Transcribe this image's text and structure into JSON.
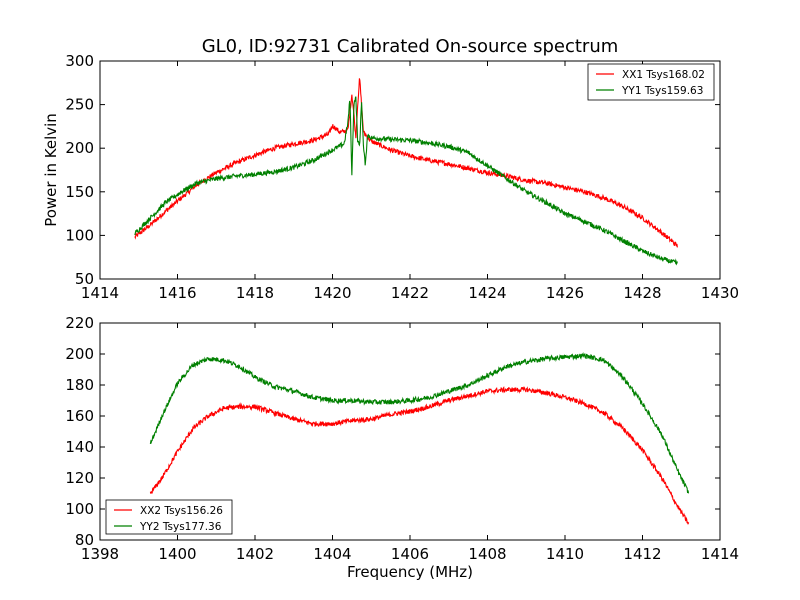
{
  "chart_data": [
    {
      "type": "line",
      "title": "GL0, ID:92731 Calibrated On-source spectrum",
      "xlabel": "",
      "ylabel": "Power in Kelvin",
      "xlim": [
        1414,
        1430
      ],
      "ylim": [
        50,
        300
      ],
      "xticks": [
        "1414",
        "1416",
        "1418",
        "1420",
        "1422",
        "1424",
        "1426",
        "1428",
        "1430"
      ],
      "yticks": [
        "50",
        "100",
        "150",
        "200",
        "250",
        "300"
      ],
      "grid": false,
      "legend_position": "top-right",
      "series": [
        {
          "name": "XX1 Tsys168.02",
          "color": "#ff0000",
          "x": [
            1414.9,
            1415.3,
            1415.7,
            1416.1,
            1416.5,
            1417.0,
            1417.5,
            1418.0,
            1418.5,
            1419.0,
            1419.5,
            1419.9,
            1420.0,
            1420.2,
            1420.4,
            1420.5,
            1420.55,
            1420.6,
            1420.65,
            1420.7,
            1420.8,
            1421.0,
            1421.5,
            1422.0,
            1422.5,
            1423.0,
            1423.5,
            1424.0,
            1424.5,
            1425.0,
            1425.5,
            1426.0,
            1426.5,
            1427.0,
            1427.5,
            1428.0,
            1428.5,
            1428.9
          ],
          "y": [
            98,
            112,
            128,
            143,
            158,
            172,
            183,
            192,
            200,
            205,
            209,
            216,
            226,
            218,
            221,
            262,
            240,
            212,
            250,
            281,
            218,
            208,
            198,
            191,
            186,
            182,
            177,
            172,
            168,
            163,
            160,
            155,
            150,
            143,
            133,
            120,
            103,
            88
          ]
        },
        {
          "name": "YY1 Tsys159.63",
          "color": "#008000",
          "x": [
            1414.9,
            1415.3,
            1415.7,
            1416.1,
            1416.5,
            1417.0,
            1417.5,
            1418.0,
            1418.5,
            1419.0,
            1419.5,
            1420.0,
            1420.3,
            1420.4,
            1420.45,
            1420.5,
            1420.55,
            1420.6,
            1420.65,
            1420.7,
            1420.75,
            1420.8,
            1420.85,
            1420.9,
            1421.0,
            1421.5,
            1422.0,
            1422.5,
            1423.0,
            1423.5,
            1424.0,
            1424.5,
            1425.0,
            1425.5,
            1426.0,
            1426.5,
            1427.0,
            1427.5,
            1428.0,
            1428.5,
            1428.9
          ],
          "y": [
            102,
            120,
            138,
            150,
            160,
            165,
            168,
            170,
            173,
            178,
            186,
            198,
            205,
            230,
            258,
            168,
            250,
            260,
            208,
            202,
            255,
            200,
            180,
            215,
            212,
            210,
            209,
            206,
            202,
            195,
            180,
            165,
            150,
            138,
            125,
            116,
            106,
            94,
            82,
            73,
            68
          ]
        }
      ]
    },
    {
      "type": "line",
      "title": "",
      "xlabel": "Frequency (MHz)",
      "ylabel": "",
      "xlim": [
        1398,
        1414
      ],
      "ylim": [
        80,
        220
      ],
      "xticks": [
        "1398",
        "1400",
        "1402",
        "1404",
        "1406",
        "1408",
        "1410",
        "1412",
        "1414"
      ],
      "yticks": [
        "80",
        "100",
        "120",
        "140",
        "160",
        "180",
        "200",
        "220"
      ],
      "grid": false,
      "legend_position": "bottom-left",
      "series": [
        {
          "name": "XX2 Tsys156.26",
          "color": "#ff0000",
          "x": [
            1399.3,
            1399.6,
            1400.0,
            1400.4,
            1400.8,
            1401.2,
            1401.6,
            1402.0,
            1402.5,
            1403.0,
            1403.5,
            1404.0,
            1404.5,
            1405.0,
            1405.5,
            1406.0,
            1406.5,
            1407.0,
            1407.5,
            1408.0,
            1408.5,
            1409.0,
            1409.5,
            1410.0,
            1410.5,
            1411.0,
            1411.5,
            1412.0,
            1412.5,
            1412.9,
            1413.2
          ],
          "y": [
            110,
            120,
            137,
            152,
            160,
            165,
            166,
            166,
            162,
            158,
            155,
            155,
            157,
            158,
            161,
            163,
            166,
            170,
            173,
            176,
            177,
            177,
            175,
            172,
            168,
            162,
            152,
            138,
            120,
            102,
            90
          ]
        },
        {
          "name": "YY2 Tsys177.36",
          "color": "#008000",
          "x": [
            1399.3,
            1399.6,
            1400.0,
            1400.4,
            1400.8,
            1401.2,
            1401.6,
            1402.0,
            1402.5,
            1403.0,
            1403.5,
            1404.0,
            1404.5,
            1405.0,
            1405.5,
            1406.0,
            1406.5,
            1407.0,
            1407.5,
            1408.0,
            1408.5,
            1409.0,
            1409.5,
            1410.0,
            1410.5,
            1411.0,
            1411.5,
            1412.0,
            1412.5,
            1412.9,
            1413.2
          ],
          "y": [
            142,
            160,
            181,
            193,
            197,
            196,
            192,
            185,
            179,
            176,
            172,
            170,
            170,
            169,
            169,
            170,
            172,
            176,
            180,
            186,
            192,
            195,
            197,
            198,
            199,
            196,
            185,
            168,
            148,
            125,
            110
          ]
        }
      ]
    }
  ]
}
